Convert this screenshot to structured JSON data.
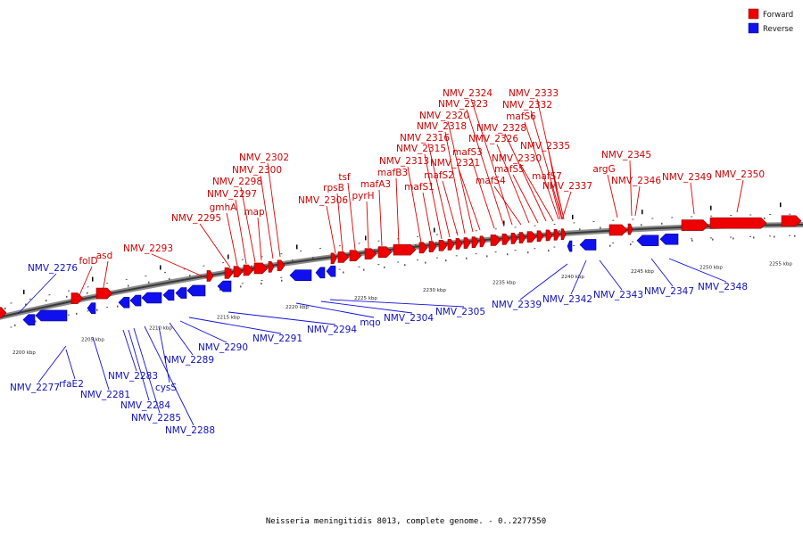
{
  "caption": "Neisseria meningitidis 8013, complete genome. - 0..2277550",
  "legend": {
    "forward": {
      "label": "Forward",
      "color": "#ee0000"
    },
    "reverse": {
      "label": "Reverse",
      "color": "#1010ee"
    }
  },
  "scale_labels": [
    "2200 kbp",
    "2205 kbp",
    "2210 kbp",
    "2215 kbp",
    "2220 kbp",
    "2225 kbp",
    "2230 kbp",
    "2235 kbp",
    "2240 kbp",
    "2245 kbp",
    "2250 kbp",
    "2255 kbp"
  ],
  "forward_labels": [
    "folD",
    "asd",
    "NMV_2293",
    "NMV_2295",
    "gmhA",
    "NMV_2297",
    "NMV_2298",
    "map",
    "NMV_2300",
    "NMV_2302",
    "NMV_2306",
    "rpsB",
    "tsf",
    "pyrH",
    "mafA3",
    "mafB3",
    "NMV_2313",
    "mafS1",
    "NMV_2315",
    "NMV_2316",
    "mafS2",
    "NMV_2318",
    "NMV_2320",
    "NMV_2321",
    "mafS3",
    "NMV_2323",
    "NMV_2324",
    "mafS4",
    "NMV_2326",
    "mafS5",
    "NMV_2328",
    "NMV_2330",
    "mafS6",
    "NMV_2332",
    "NMV_2333",
    "mafS7",
    "NMV_2335",
    "NMV_2337",
    "argG",
    "NMV_2345",
    "NMV_2346",
    "NMV_2349",
    "NMV_2350"
  ],
  "reverse_labels": [
    "NMV_2276",
    "NMV_2277",
    "rfaE2",
    "NMV_2281",
    "NMV_2283",
    "NMV_2284",
    "NMV_2285",
    "cysS",
    "NMV_2288",
    "NMV_2289",
    "NMV_2290",
    "NMV_2291",
    "NMV_2294",
    "mqo",
    "NMV_2304",
    "NMV_2305",
    "NMV_2339",
    "NMV_2342",
    "NMV_2343",
    "NMV_2347",
    "NMV_2348"
  ]
}
